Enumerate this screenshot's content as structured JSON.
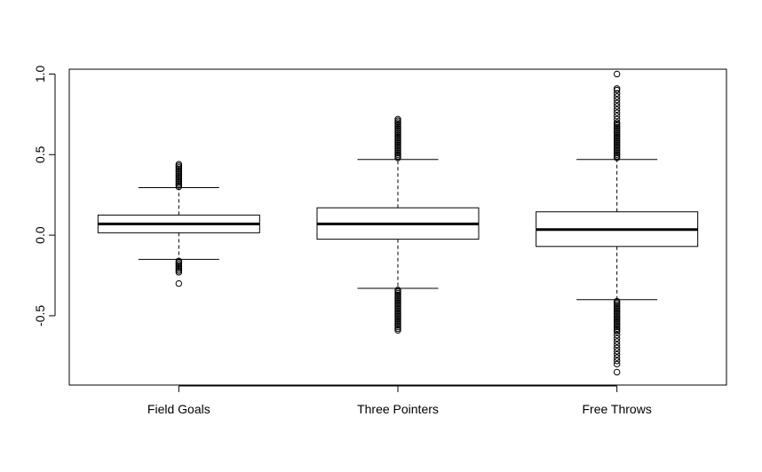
{
  "chart_data": {
    "type": "boxplot",
    "title": "",
    "xlabel": "",
    "ylabel": "",
    "categories": [
      "Field Goals",
      "Three Pointers",
      "Free Throws"
    ],
    "ylim": [
      -0.93,
      1.03
    ],
    "yticks": [
      -0.5,
      0.0,
      0.5,
      1.0
    ],
    "ytick_labels": [
      "-0.5",
      "0.0",
      "0.5",
      "1.0"
    ],
    "grid": false,
    "legend": "none",
    "boxes": [
      {
        "name": "Field Goals",
        "lower_whisker": -0.15,
        "q1": 0.015,
        "median": 0.07,
        "q3": 0.125,
        "upper_whisker": 0.295,
        "outliers": [
          0.3,
          0.31,
          0.32,
          0.33,
          0.34,
          0.35,
          0.36,
          0.37,
          0.38,
          0.39,
          0.4,
          0.41,
          0.42,
          0.43,
          0.44,
          -0.16,
          -0.17,
          -0.18,
          -0.19,
          -0.2,
          -0.21,
          -0.22,
          -0.23,
          -0.3
        ]
      },
      {
        "name": "Three Pointers",
        "lower_whisker": -0.33,
        "q1": -0.025,
        "median": 0.07,
        "q3": 0.17,
        "upper_whisker": 0.47,
        "outliers": [
          0.48,
          0.49,
          0.5,
          0.51,
          0.52,
          0.53,
          0.54,
          0.55,
          0.56,
          0.57,
          0.58,
          0.59,
          0.6,
          0.61,
          0.62,
          0.63,
          0.64,
          0.65,
          0.66,
          0.67,
          0.68,
          0.69,
          0.7,
          0.71,
          0.72,
          -0.34,
          -0.35,
          -0.36,
          -0.37,
          -0.38,
          -0.39,
          -0.4,
          -0.41,
          -0.42,
          -0.43,
          -0.44,
          -0.45,
          -0.46,
          -0.47,
          -0.48,
          -0.49,
          -0.5,
          -0.51,
          -0.52,
          -0.53,
          -0.54,
          -0.55,
          -0.56,
          -0.57,
          -0.58,
          -0.59
        ]
      },
      {
        "name": "Free Throws",
        "lower_whisker": -0.4,
        "q1": -0.07,
        "median": 0.035,
        "q3": 0.145,
        "upper_whisker": 0.47,
        "outliers": [
          0.48,
          0.49,
          0.5,
          0.51,
          0.52,
          0.53,
          0.54,
          0.55,
          0.56,
          0.57,
          0.58,
          0.59,
          0.6,
          0.61,
          0.62,
          0.63,
          0.64,
          0.65,
          0.66,
          0.67,
          0.68,
          0.69,
          0.7,
          0.72,
          0.74,
          0.76,
          0.78,
          0.8,
          0.82,
          0.84,
          0.86,
          0.88,
          0.9,
          0.91,
          1.0,
          -0.41,
          -0.42,
          -0.43,
          -0.44,
          -0.45,
          -0.46,
          -0.47,
          -0.48,
          -0.49,
          -0.5,
          -0.51,
          -0.52,
          -0.53,
          -0.54,
          -0.55,
          -0.56,
          -0.57,
          -0.58,
          -0.59,
          -0.6,
          -0.62,
          -0.64,
          -0.66,
          -0.68,
          -0.7,
          -0.72,
          -0.74,
          -0.76,
          -0.78,
          -0.8,
          -0.85
        ]
      }
    ]
  }
}
